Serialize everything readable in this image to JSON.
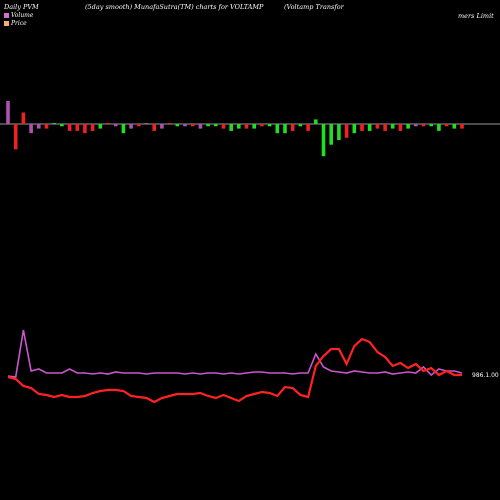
{
  "header": {
    "left": "Daily PVM",
    "middle": "(5day smooth) MunafaSutra(TM) charts for VOLTAMP",
    "right": "(Voltamp Transfor",
    "right2": "mers Limit"
  },
  "legend": [
    {
      "label": "Volume",
      "color": "#d070d0"
    },
    {
      "label": "Price",
      "color": "#f0b070"
    }
  ],
  "colors": {
    "up": "#22dd22",
    "down": "#ee2222",
    "neutral": "#b050b0",
    "price": "#ff2222",
    "volume_line": "#cc55cc",
    "baseline": "#cccccc"
  },
  "chart_data": {
    "type": "bar",
    "volume_bars": {
      "values": [
        10,
        -11,
        5,
        -4,
        -2,
        -2,
        0,
        -1,
        -3,
        -3,
        -4,
        -3,
        -2,
        0,
        -1,
        -4,
        -2,
        -1,
        0,
        -3,
        -2,
        0,
        -1,
        -1,
        -1,
        -2,
        -1,
        -1,
        -2,
        -3,
        -2,
        -2,
        -2,
        -1,
        -1,
        -4,
        -4,
        -3,
        -1,
        -3,
        2,
        -14,
        -9,
        -7,
        -6,
        -4,
        -3,
        -3,
        -2,
        -3,
        -2,
        -3,
        -2,
        -1,
        -1,
        -1,
        -3,
        -1,
        -2,
        -2
      ],
      "dirs": [
        "n",
        "d",
        "d",
        "n",
        "n",
        "d",
        "u",
        "u",
        "d",
        "d",
        "d",
        "d",
        "u",
        "d",
        "n",
        "u",
        "n",
        "d",
        "n",
        "d",
        "n",
        "d",
        "u",
        "n",
        "d",
        "n",
        "u",
        "u",
        "d",
        "u",
        "u",
        "d",
        "u",
        "d",
        "u",
        "u",
        "u",
        "d",
        "u",
        "d",
        "u",
        "u",
        "u",
        "u",
        "d",
        "u",
        "d",
        "u",
        "d",
        "d",
        "u",
        "d",
        "u",
        "n",
        "d",
        "u",
        "u",
        "d",
        "u",
        "d"
      ]
    },
    "price": [
      -3,
      -5,
      -12,
      -14,
      -20,
      -21,
      -23,
      -21,
      -23,
      -23,
      -22,
      -19,
      -17,
      -16,
      -16,
      -17,
      -22,
      -23,
      -24,
      -28,
      -24,
      -22,
      -20,
      -20,
      -20,
      -19,
      -22,
      -24,
      -21,
      -24,
      -27,
      -22,
      -20,
      -18,
      -19,
      -22,
      -13,
      -14,
      -21,
      -23,
      8,
      18,
      25,
      25,
      10,
      28,
      35,
      32,
      22,
      17,
      8,
      11,
      6,
      10,
      3,
      6,
      -1,
      3,
      -1,
      -1
    ],
    "volume_line": [
      -2,
      -3,
      44,
      3,
      5,
      1,
      1,
      1,
      5,
      1,
      1,
      0,
      1,
      0,
      2,
      1,
      1,
      1,
      0,
      1,
      1,
      1,
      1,
      0,
      1,
      0,
      1,
      1,
      0,
      1,
      0,
      1,
      2,
      2,
      1,
      1,
      1,
      0,
      1,
      1,
      20,
      7,
      3,
      2,
      1,
      3,
      2,
      1,
      1,
      2,
      0,
      1,
      2,
      1,
      7,
      -1,
      5,
      3,
      3,
      1
    ],
    "price_label": "986.1.00"
  }
}
